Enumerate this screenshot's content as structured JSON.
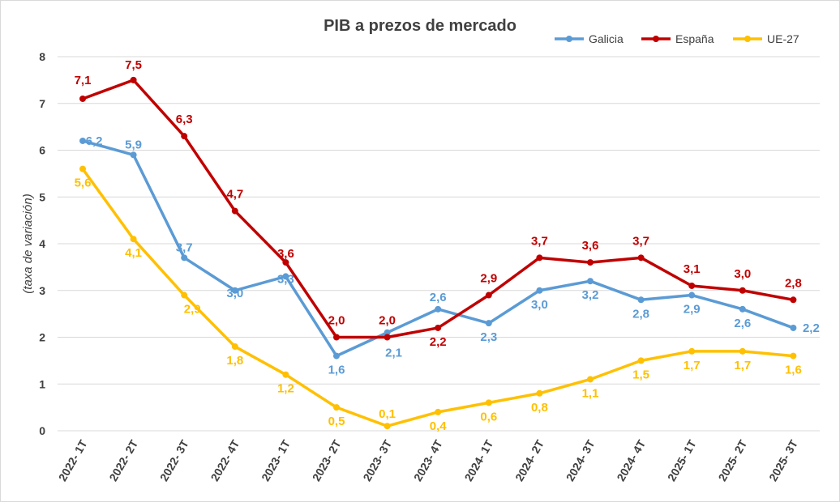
{
  "chart_data": {
    "type": "line",
    "title": "PIB a prezos de mercado",
    "ylabel": "(taxa de variación)",
    "xlabel": "",
    "ylim": [
      0,
      8
    ],
    "yticks": [
      "0",
      "1",
      "2",
      "3",
      "4",
      "5",
      "6",
      "7",
      "8"
    ],
    "grid": true,
    "legend_position": "top-right",
    "categories": [
      "2022- 1T",
      "2022- 2T",
      "2022- 3T",
      "2022- 4T",
      "2023- 1T",
      "2023- 2T",
      "2023- 3T",
      "2023- 4T",
      "2024- 1T",
      "2024- 2T",
      "2024- 3T",
      "2024- 4T",
      "2025- 1T",
      "2025- 2T",
      "2025- 3T"
    ],
    "series": [
      {
        "name": "Galicia",
        "color": "#5B9BD5",
        "values": [
          6.2,
          5.9,
          3.7,
          3.0,
          3.3,
          1.6,
          2.1,
          2.6,
          2.3,
          3.0,
          3.2,
          2.8,
          2.9,
          2.6,
          2.2
        ],
        "labels": [
          "6,2",
          "5,9",
          "3,7",
          "3,0",
          "3,3",
          "1,6",
          "2,1",
          "2,6",
          "2,3",
          "3,0",
          "3,2",
          "2,8",
          "2,9",
          "2,6",
          "2,2"
        ]
      },
      {
        "name": "España",
        "color": "#C00000",
        "values": [
          7.1,
          7.5,
          6.3,
          4.7,
          3.6,
          2.0,
          2.0,
          2.2,
          2.9,
          3.7,
          3.6,
          3.7,
          3.1,
          3.0,
          2.8
        ],
        "labels": [
          "7,1",
          "7,5",
          "6,3",
          "4,7",
          "3,6",
          "2,0",
          "2,0",
          "2,2",
          "2,9",
          "3,7",
          "3,6",
          "3,7",
          "3,1",
          "3,0",
          "2,8"
        ]
      },
      {
        "name": "UE-27",
        "color": "#FFC000",
        "values": [
          5.6,
          4.1,
          2.9,
          1.8,
          1.2,
          0.5,
          0.1,
          0.4,
          0.6,
          0.8,
          1.1,
          1.5,
          1.7,
          1.7,
          1.6
        ],
        "labels": [
          "5,6",
          "4,1",
          "2,9",
          "1,8",
          "1,2",
          "0,5",
          "0,1",
          "0,4",
          "0,6",
          "0,8",
          "1,1",
          "1,5",
          "1,7",
          "1,7",
          "1,6"
        ]
      }
    ]
  }
}
